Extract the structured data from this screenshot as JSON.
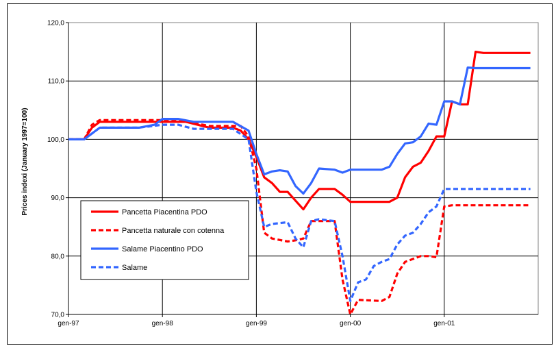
{
  "chart_data": {
    "type": "line",
    "title": "",
    "xlabel": "",
    "ylabel": "Prices indexi (January 1997=100)",
    "xlim": [
      "1997-01",
      "2001-12"
    ],
    "ylim": [
      70,
      120
    ],
    "grid": true,
    "legend_position": "center-left",
    "x_tick_labels": [
      "gen-97",
      "gen-98",
      "gen-99",
      "gen-00",
      "gen-01"
    ],
    "y_tick_labels": [
      "70,0",
      "80,0",
      "90,0",
      "100,0",
      "110,0",
      "120,0"
    ],
    "series": [
      {
        "name": "Pancetta Piacentina PDO",
        "color": "#ff0000",
        "dash": "solid",
        "points": [
          [
            "1997-01",
            100.0
          ],
          [
            "1997-03",
            100.0
          ],
          [
            "1997-04",
            102.0
          ],
          [
            "1997-05",
            103.0
          ],
          [
            "1997-07",
            103.0
          ],
          [
            "1998-01",
            103.0
          ],
          [
            "1998-04",
            103.0
          ],
          [
            "1998-07",
            102.0
          ],
          [
            "1998-10",
            102.0
          ],
          [
            "1998-11",
            101.5
          ],
          [
            "1998-12",
            100.0
          ],
          [
            "1999-01",
            97.0
          ],
          [
            "1999-02",
            93.5
          ],
          [
            "1999-03",
            92.5
          ],
          [
            "1999-04",
            91.0
          ],
          [
            "1999-05",
            91.0
          ],
          [
            "1999-06",
            89.5
          ],
          [
            "1999-07",
            88.0
          ],
          [
            "1999-08",
            90.0
          ],
          [
            "1999-09",
            91.5
          ],
          [
            "1999-10",
            91.5
          ],
          [
            "1999-11",
            91.5
          ],
          [
            "1999-12",
            90.5
          ],
          [
            "2000-01",
            89.3
          ],
          [
            "2000-02",
            89.3
          ],
          [
            "2000-05",
            89.3
          ],
          [
            "2000-06",
            89.3
          ],
          [
            "2000-07",
            90.0
          ],
          [
            "2000-08",
            93.5
          ],
          [
            "2000-09",
            95.3
          ],
          [
            "2000-10",
            96.0
          ],
          [
            "2000-11",
            98.0
          ],
          [
            "2000-12",
            100.5
          ],
          [
            "2001-01",
            100.5
          ],
          [
            "2001-02",
            106.5
          ],
          [
            "2001-03",
            106.0
          ],
          [
            "2001-04",
            106.0
          ],
          [
            "2001-05",
            115.0
          ],
          [
            "2001-06",
            114.8
          ],
          [
            "2001-12",
            114.8
          ]
        ]
      },
      {
        "name": "Pancetta naturale con cotenna",
        "color": "#ff0000",
        "dash": "dashed",
        "points": [
          [
            "1997-01",
            100.0
          ],
          [
            "1997-03",
            100.0
          ],
          [
            "1997-04",
            102.5
          ],
          [
            "1997-05",
            103.3
          ],
          [
            "1998-01",
            103.3
          ],
          [
            "1998-04",
            103.0
          ],
          [
            "1998-07",
            102.3
          ],
          [
            "1998-11",
            102.3
          ],
          [
            "1998-12",
            100.5
          ],
          [
            "1999-01",
            95.0
          ],
          [
            "1999-02",
            84.0
          ],
          [
            "1999-03",
            83.0
          ],
          [
            "1999-05",
            82.5
          ],
          [
            "1999-06",
            82.7
          ],
          [
            "1999-07",
            83.0
          ],
          [
            "1999-08",
            86.0
          ],
          [
            "1999-10",
            86.0
          ],
          [
            "1999-11",
            86.0
          ],
          [
            "1999-12",
            76.0
          ],
          [
            "2000-01",
            70.0
          ],
          [
            "2000-02",
            72.5
          ],
          [
            "2000-05",
            72.3
          ],
          [
            "2000-06",
            73.0
          ],
          [
            "2000-07",
            77.0
          ],
          [
            "2000-08",
            79.0
          ],
          [
            "2000-10",
            80.0
          ],
          [
            "2000-11",
            80.0
          ],
          [
            "2000-12",
            79.8
          ],
          [
            "2001-01",
            88.5
          ],
          [
            "2001-02",
            88.7
          ],
          [
            "2001-12",
            88.7
          ]
        ]
      },
      {
        "name": "Salame Piacentino PDO",
        "color": "#3366ff",
        "dash": "solid",
        "points": [
          [
            "1997-01",
            100.0
          ],
          [
            "1997-03",
            100.0
          ],
          [
            "1997-05",
            102.0
          ],
          [
            "1997-10",
            102.0
          ],
          [
            "1997-12",
            102.5
          ],
          [
            "1998-01",
            103.5
          ],
          [
            "1998-03",
            103.5
          ],
          [
            "1998-05",
            103.0
          ],
          [
            "1998-10",
            103.0
          ],
          [
            "1998-12",
            101.5
          ],
          [
            "1999-01",
            97.5
          ],
          [
            "1999-02",
            94.0
          ],
          [
            "1999-03",
            94.5
          ],
          [
            "1999-04",
            94.7
          ],
          [
            "1999-05",
            94.5
          ],
          [
            "1999-06",
            92.0
          ],
          [
            "1999-07",
            90.7
          ],
          [
            "1999-08",
            92.5
          ],
          [
            "1999-09",
            95.0
          ],
          [
            "1999-11",
            94.8
          ],
          [
            "1999-12",
            94.3
          ],
          [
            "2000-01",
            94.8
          ],
          [
            "2000-05",
            94.8
          ],
          [
            "2000-06",
            95.3
          ],
          [
            "2000-07",
            97.5
          ],
          [
            "2000-08",
            99.3
          ],
          [
            "2000-09",
            99.5
          ],
          [
            "2000-10",
            100.5
          ],
          [
            "2000-11",
            102.7
          ],
          [
            "2000-12",
            102.5
          ],
          [
            "2001-01",
            106.5
          ],
          [
            "2001-02",
            106.5
          ],
          [
            "2001-03",
            106.0
          ],
          [
            "2001-04",
            112.3
          ],
          [
            "2001-05",
            112.2
          ],
          [
            "2001-12",
            112.2
          ]
        ]
      },
      {
        "name": "Salame",
        "color": "#3366ff",
        "dash": "dashed",
        "points": [
          [
            "1997-01",
            100.0
          ],
          [
            "1997-03",
            100.0
          ],
          [
            "1997-05",
            102.0
          ],
          [
            "1997-10",
            102.0
          ],
          [
            "1998-01",
            102.5
          ],
          [
            "1998-03",
            102.5
          ],
          [
            "1998-05",
            101.8
          ],
          [
            "1998-10",
            101.8
          ],
          [
            "1998-12",
            100.0
          ],
          [
            "1999-01",
            91.0
          ],
          [
            "1999-02",
            85.0
          ],
          [
            "1999-03",
            85.5
          ],
          [
            "1999-05",
            85.8
          ],
          [
            "1999-06",
            83.0
          ],
          [
            "1999-07",
            81.5
          ],
          [
            "1999-08",
            86.0
          ],
          [
            "1999-09",
            86.3
          ],
          [
            "1999-11",
            86.0
          ],
          [
            "1999-12",
            80.0
          ],
          [
            "2000-01",
            72.3
          ],
          [
            "2000-02",
            75.5
          ],
          [
            "2000-03",
            76.0
          ],
          [
            "2000-04",
            78.3
          ],
          [
            "2000-05",
            79.0
          ],
          [
            "2000-06",
            79.5
          ],
          [
            "2000-07",
            82.0
          ],
          [
            "2000-08",
            83.5
          ],
          [
            "2000-09",
            84.0
          ],
          [
            "2000-10",
            85.5
          ],
          [
            "2000-11",
            87.5
          ],
          [
            "2000-12",
            88.5
          ],
          [
            "2001-01",
            91.5
          ],
          [
            "2001-12",
            91.5
          ]
        ]
      }
    ]
  }
}
